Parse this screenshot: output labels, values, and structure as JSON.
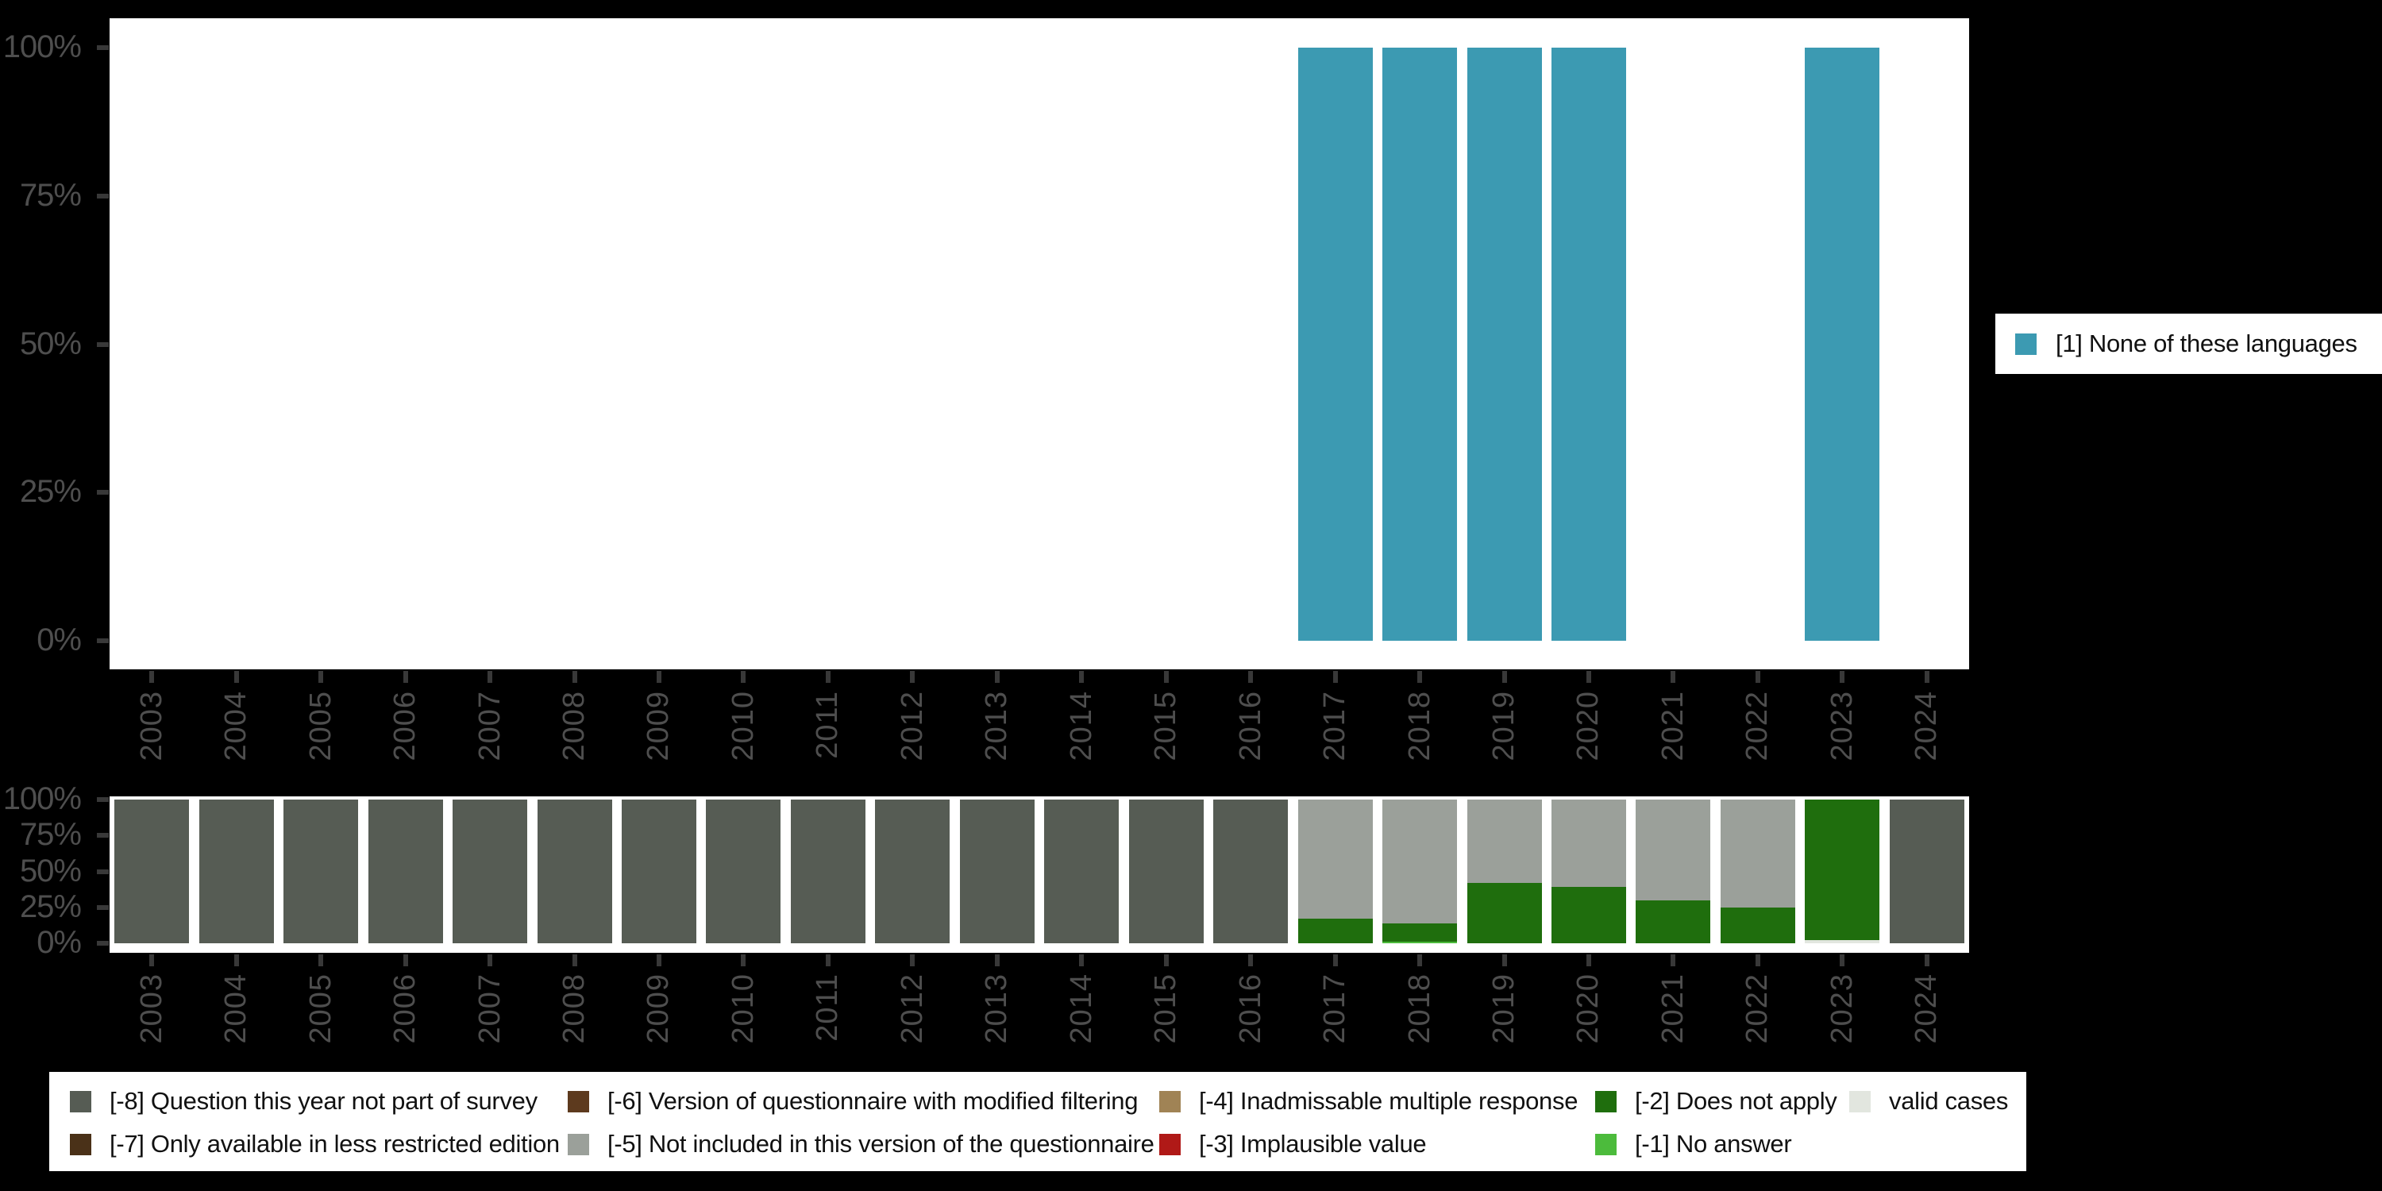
{
  "background": "#000000",
  "panel_color": "#ffffff",
  "axis": {
    "tick_label_color": "#4e4e4e",
    "tick_mark_color": "#383838",
    "y_tick_labels": [
      "100%",
      "75%",
      "50%",
      "25%",
      "0%"
    ],
    "x_tick_labels": [
      "2003",
      "2004",
      "2005",
      "2006",
      "2007",
      "2008",
      "2009",
      "2010",
      "2011",
      "2012",
      "2013",
      "2014",
      "2015",
      "2016",
      "2017",
      "2018",
      "2019",
      "2020",
      "2021",
      "2022",
      "2023",
      "2024"
    ]
  },
  "chart_data": [
    {
      "type": "bar",
      "title": "",
      "xlabel": "",
      "ylabel": "",
      "ylim": [
        0,
        100
      ],
      "grid": false,
      "legend_position": "right",
      "categories": [
        "2003",
        "2004",
        "2005",
        "2006",
        "2007",
        "2008",
        "2009",
        "2010",
        "2011",
        "2012",
        "2013",
        "2014",
        "2015",
        "2016",
        "2017",
        "2018",
        "2019",
        "2020",
        "2021",
        "2022",
        "2023",
        "2024"
      ],
      "series": [
        {
          "name": "[1] None of these languages",
          "color": "#3c9ab2",
          "values": [
            null,
            null,
            null,
            null,
            null,
            null,
            null,
            null,
            null,
            null,
            null,
            null,
            null,
            null,
            100,
            100,
            100,
            100,
            null,
            null,
            100,
            null
          ]
        }
      ]
    },
    {
      "type": "stacked-bar",
      "title": "",
      "xlabel": "",
      "ylabel": "",
      "ylim": [
        0,
        100
      ],
      "grid": false,
      "legend_position": "bottom",
      "stack_order": "top-to-bottom",
      "categories": [
        "2003",
        "2004",
        "2005",
        "2006",
        "2007",
        "2008",
        "2009",
        "2010",
        "2011",
        "2012",
        "2013",
        "2014",
        "2015",
        "2016",
        "2017",
        "2018",
        "2019",
        "2020",
        "2021",
        "2022",
        "2023",
        "2024"
      ],
      "series": [
        {
          "name": "[-8] Question this year not part of survey",
          "color": "#565c54",
          "values": [
            100,
            100,
            100,
            100,
            100,
            100,
            100,
            100,
            100,
            100,
            100,
            100,
            100,
            100,
            0,
            0,
            0,
            0,
            0,
            0,
            0,
            100
          ]
        },
        {
          "name": "[-7] Only available in less restricted edition",
          "color": "#4a3118",
          "values": [
            0,
            0,
            0,
            0,
            0,
            0,
            0,
            0,
            0,
            0,
            0,
            0,
            0,
            0,
            0,
            0,
            0,
            0,
            0,
            0,
            0,
            0
          ]
        },
        {
          "name": "[-6] Version of questionnaire with modified filtering",
          "color": "#5d3a1e",
          "values": [
            0,
            0,
            0,
            0,
            0,
            0,
            0,
            0,
            0,
            0,
            0,
            0,
            0,
            0,
            0,
            0,
            0,
            0,
            0,
            0,
            0,
            0
          ]
        },
        {
          "name": "[-5] Not included in this version of the questionnaire",
          "color": "#9ba09a",
          "values": [
            0,
            0,
            0,
            0,
            0,
            0,
            0,
            0,
            0,
            0,
            0,
            0,
            0,
            0,
            83,
            86,
            58,
            61,
            70,
            75,
            0,
            0
          ]
        },
        {
          "name": "[-4] Inadmissable multiple response",
          "color": "#a08355",
          "values": [
            0,
            0,
            0,
            0,
            0,
            0,
            0,
            0,
            0,
            0,
            0,
            0,
            0,
            0,
            0,
            0,
            0,
            0,
            0,
            0,
            0,
            0
          ]
        },
        {
          "name": "[-3] Implausible value",
          "color": "#b01917",
          "values": [
            0,
            0,
            0,
            0,
            0,
            0,
            0,
            0,
            0,
            0,
            0,
            0,
            0,
            0,
            0,
            0,
            0,
            0,
            0,
            0,
            0,
            0
          ]
        },
        {
          "name": "[-2] Does not apply",
          "color": "#1f6e0d",
          "values": [
            0,
            0,
            0,
            0,
            0,
            0,
            0,
            0,
            0,
            0,
            0,
            0,
            0,
            0,
            17,
            13,
            42,
            39,
            30,
            25,
            98,
            0
          ]
        },
        {
          "name": "[-1] No answer",
          "color": "#4cbb3c",
          "values": [
            0,
            0,
            0,
            0,
            0,
            0,
            0,
            0,
            0,
            0,
            0,
            0,
            0,
            0,
            0,
            1,
            0,
            0,
            0,
            0,
            0,
            0
          ]
        },
        {
          "name": "valid cases",
          "color": "#e2e6df",
          "values": [
            0,
            0,
            0,
            0,
            0,
            0,
            0,
            0,
            0,
            0,
            0,
            0,
            0,
            0,
            0,
            0,
            0,
            0,
            0,
            0,
            2,
            0
          ]
        }
      ]
    }
  ],
  "legend_right": {
    "items": [
      {
        "label": "[1] None of these languages",
        "color": "#3c9ab2"
      }
    ]
  },
  "legend_bottom": {
    "items": [
      {
        "label": "[-8] Question this year not part of survey",
        "color": "#565c54"
      },
      {
        "label": "[-7] Only available in less restricted edition",
        "color": "#4a3118"
      },
      {
        "label": "[-6] Version of questionnaire with modified filtering",
        "color": "#5d3a1e"
      },
      {
        "label": "[-5] Not included in this version of the questionnaire",
        "color": "#9ba09a"
      },
      {
        "label": "[-4] Inadmissable multiple response",
        "color": "#a08355"
      },
      {
        "label": "[-3] Implausible value",
        "color": "#b01917"
      },
      {
        "label": "[-2] Does not apply",
        "color": "#1f6e0d"
      },
      {
        "label": "[-1] No answer",
        "color": "#4cbb3c"
      },
      {
        "label": "valid cases",
        "color": "#e2e6df"
      }
    ]
  }
}
